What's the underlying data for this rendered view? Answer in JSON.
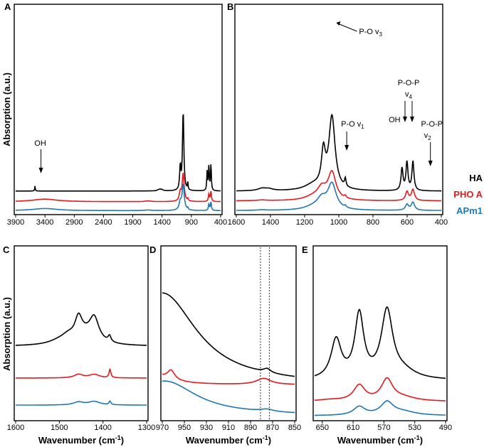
{
  "chart_data": [
    {
      "panel": "A",
      "type": "line",
      "xlim": [
        3900,
        400
      ],
      "xticks": [
        "3900",
        "3400",
        "2900",
        "2400",
        "1900",
        "1400",
        "900",
        "400"
      ],
      "ylabel": "Absorption (a.u.)",
      "xlabel": "",
      "annotations": [
        {
          "text": "OH",
          "x": 3480
        }
      ],
      "series": [
        {
          "name": "HA",
          "color": "#000000",
          "offset": 0.52,
          "peaks": [
            [
              3570,
              0.12,
              6
            ],
            [
              1090,
              0.55,
              12
            ],
            [
              1040,
              1.85,
              14
            ],
            [
              962,
              0.18,
              6
            ],
            [
              630,
              0.45,
              8
            ],
            [
              601,
              0.58,
              8
            ],
            [
              566,
              0.62,
              8
            ],
            [
              1450,
              0.03,
              30
            ],
            [
              1410,
              0.03,
              30
            ]
          ]
        },
        {
          "name": "PHO A",
          "color": "#e31a1c",
          "offset": 0.27,
          "peaks": [
            [
              3400,
              0.06,
              250
            ],
            [
              1640,
              0.015,
              60
            ],
            [
              1040,
              0.65,
              20
            ],
            [
              1090,
              0.2,
              20
            ],
            [
              960,
              0.05,
              8
            ],
            [
              601,
              0.18,
              10
            ],
            [
              566,
              0.24,
              10
            ]
          ]
        },
        {
          "name": "APm1",
          "color": "#1f78b4",
          "offset": 0.06,
          "peaks": [
            [
              3400,
              0.05,
              250
            ],
            [
              1640,
              0.015,
              60
            ],
            [
              1040,
              0.6,
              22
            ],
            [
              1090,
              0.18,
              22
            ],
            [
              960,
              0.04,
              8
            ],
            [
              601,
              0.15,
              10
            ],
            [
              566,
              0.2,
              10
            ]
          ]
        }
      ]
    },
    {
      "panel": "B",
      "type": "line",
      "xlim": [
        1600,
        400
      ],
      "xticks": [
        "1600",
        "1400",
        "1200",
        "1000",
        "800",
        "600",
        "400"
      ],
      "annotations": [
        {
          "text": "P-O v3",
          "label_main": "P-O v",
          "label_sub": "3",
          "x": 1040
        },
        {
          "text": "P-O v1",
          "label_main": "P-O v",
          "label_sub": "1",
          "x": 962
        },
        {
          "text": "OH",
          "x": 632
        },
        {
          "text": "P-O-P v4",
          "label_main": "P-O-P",
          "label_v": "v",
          "label_sub": "4",
          "x": 600
        },
        {
          "text": "P-O-P v2",
          "label_main": "P-O-P",
          "label_v": "v",
          "label_sub": "2",
          "x": 472
        }
      ],
      "legend": [
        {
          "label": "HA",
          "color": "#000000"
        },
        {
          "label": "PHO A",
          "color": "#e31a1c"
        },
        {
          "label": "APm1",
          "color": "#1f78b4"
        }
      ],
      "series": [
        {
          "name": "HA",
          "color": "#000000",
          "offset": 0.5,
          "peaks": [
            [
              1090,
              0.78,
              14
            ],
            [
              1040,
              1.65,
              22
            ],
            [
              962,
              0.18,
              5
            ],
            [
              1450,
              0.05,
              30
            ],
            [
              1410,
              0.04,
              30
            ],
            [
              630,
              0.5,
              7
            ],
            [
              601,
              0.64,
              7
            ],
            [
              566,
              0.66,
              7
            ],
            [
              1150,
              0.12,
              60
            ]
          ]
        },
        {
          "name": "PHO A",
          "color": "#e31a1c",
          "offset": 0.28,
          "peaks": [
            [
              1100,
              0.24,
              30
            ],
            [
              1040,
              0.62,
              28
            ],
            [
              962,
              0.05,
              6
            ],
            [
              601,
              0.2,
              10
            ],
            [
              566,
              0.25,
              11
            ],
            [
              1150,
              0.08,
              60
            ],
            [
              1450,
              0.015,
              30
            ]
          ]
        },
        {
          "name": "APm1",
          "color": "#1f78b4",
          "offset": 0.06,
          "peaks": [
            [
              1100,
              0.22,
              32
            ],
            [
              1040,
              0.58,
              30
            ],
            [
              962,
              0.04,
              6
            ],
            [
              601,
              0.13,
              11
            ],
            [
              566,
              0.18,
              12
            ],
            [
              1150,
              0.07,
              60
            ],
            [
              1450,
              0.012,
              30
            ]
          ]
        }
      ]
    },
    {
      "panel": "C",
      "type": "line",
      "xlim": [
        1600,
        1300
      ],
      "xticks": [
        "1600",
        "1500",
        "1400",
        "1300"
      ],
      "xlabel": "Wavenumber (cm-1)",
      "ylabel": "Absorption (a.u.)",
      "series": [
        {
          "name": "HA",
          "color": "#000000",
          "offset": 0.62,
          "peaks": [
            [
              1456,
              0.17,
              10
            ],
            [
              1420,
              0.19,
              13
            ],
            [
              1385,
              0.05,
              4
            ],
            [
              1480,
              0.05,
              18
            ],
            [
              1500,
              0.03,
              30
            ],
            [
              1440,
              0.08,
              30
            ]
          ]
        },
        {
          "name": "PHO A",
          "color": "#e31a1c",
          "offset": 0.35,
          "peaks": [
            [
              1456,
              0.03,
              12
            ],
            [
              1420,
              0.03,
              14
            ],
            [
              1384,
              0.07,
              2.5
            ]
          ]
        },
        {
          "name": "APm1",
          "color": "#1f78b4",
          "offset": 0.12,
          "peaks": [
            [
              1456,
              0.025,
              14
            ],
            [
              1420,
              0.03,
              16
            ],
            [
              1384,
              0.03,
              2.5
            ]
          ]
        }
      ]
    },
    {
      "panel": "D",
      "type": "line",
      "xlim": [
        970,
        850
      ],
      "xticks": [
        "970",
        "950",
        "930",
        "910",
        "890",
        "870",
        "850"
      ],
      "xlabel": "Wavenumber (cm-1)",
      "vlines": [
        881,
        873
      ],
      "series": [
        {
          "name": "HA",
          "color": "#000000",
          "offset": 0.45,
          "peaks": [
            [
              970,
              1.2,
              38
            ],
            [
              875,
              0.05,
              4
            ]
          ]
        },
        {
          "name": "PHO A",
          "color": "#e31a1c",
          "offset": 0.45,
          "peaks": [
            [
              962,
              0.12,
              4
            ],
            [
              980,
              0.15,
              18
            ],
            [
              878,
              0.08,
              8
            ]
          ]
        },
        {
          "name": "APm1",
          "color": "#1f78b4",
          "offset": 0.05,
          "peaks": [
            [
              968,
              0.45,
              35
            ],
            [
              875,
              0.03,
              7
            ]
          ]
        }
      ]
    },
    {
      "panel": "E",
      "type": "line",
      "xlim": [
        660,
        490
      ],
      "xticks": [
        "650",
        "610",
        "570",
        "530",
        "490"
      ],
      "xlabel": "Wavenumber (cm-1)",
      "series": [
        {
          "name": "HA",
          "color": "#000000",
          "offset": 0.55,
          "peaks": [
            [
              632,
              0.55,
              8
            ],
            [
              602,
              0.9,
              7
            ],
            [
              566,
              0.95,
              9
            ],
            [
              545,
              0.1,
              20
            ]
          ]
        },
        {
          "name": "PHO A",
          "color": "#e31a1c",
          "offset": 0.25,
          "peaks": [
            [
              602,
              0.22,
              9
            ],
            [
              566,
              0.3,
              9
            ],
            [
              640,
              0.02,
              20
            ],
            [
              545,
              0.05,
              20
            ]
          ]
        },
        {
          "name": "APm1",
          "color": "#1f78b4",
          "offset": 0.05,
          "peaks": [
            [
              602,
              0.12,
              9
            ],
            [
              566,
              0.18,
              10
            ],
            [
              545,
              0.05,
              20
            ]
          ]
        }
      ]
    }
  ]
}
